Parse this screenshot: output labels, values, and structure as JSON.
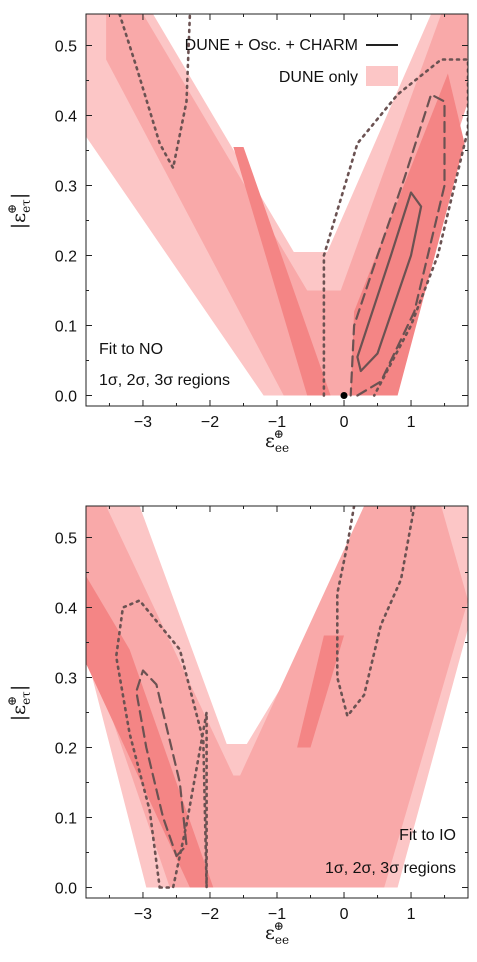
{
  "chart_data": [
    {
      "type": "contour",
      "xlim": [
        -3.85,
        1.85
      ],
      "ylim": [
        -0.015,
        0.545
      ],
      "x_ticks": [
        -3,
        -2,
        -1,
        0,
        1
      ],
      "y_ticks": [
        0.0,
        0.1,
        0.2,
        0.3,
        0.4,
        0.5
      ],
      "x_tick_labels": [
        "−3",
        "−2",
        "−1",
        "0",
        "1"
      ],
      "y_tick_labels": [
        "0.0",
        "0.1",
        "0.2",
        "0.3",
        "0.4",
        "0.5"
      ],
      "xlabel": {
        "base": "ε",
        "sup": "⊕",
        "sub": "ee"
      },
      "ylabel": {
        "base": "|ε",
        "sup": "⊕",
        "sub": "eτ",
        "close": "|"
      },
      "legend": {
        "placement": "top-right",
        "entries": [
          {
            "label": "DUNE + Osc. + CHARM",
            "style": "line"
          },
          {
            "label": "DUNE only",
            "style": "patch"
          }
        ]
      },
      "annotations": [
        "Fit to NO",
        "1σ, 2σ, 3σ regions"
      ],
      "annotation_placement": "bottom-left",
      "marker": {
        "x": 0.0,
        "y": 0.0
      },
      "regions": [
        {
          "level": "3sigma",
          "color": "#fcc6c6",
          "points": [
            [
              -3.85,
              0.545
            ],
            [
              -2.85,
              0.545
            ],
            [
              -0.75,
              0.205
            ],
            [
              -0.25,
              0.205
            ],
            [
              1.3,
              0.545
            ],
            [
              1.85,
              0.545
            ],
            [
              1.85,
              0.43
            ],
            [
              0.5,
              0.0
            ],
            [
              -1.2,
              0.0
            ],
            [
              -3.85,
              0.37
            ]
          ]
        },
        {
          "level": "2sigma",
          "color": "#f9a9a9",
          "points": [
            [
              -3.55,
              0.545
            ],
            [
              -3.0,
              0.545
            ],
            [
              -0.55,
              0.15
            ],
            [
              -0.05,
              0.15
            ],
            [
              1.45,
              0.545
            ],
            [
              1.85,
              0.545
            ],
            [
              1.85,
              0.42
            ],
            [
              0.45,
              0.0
            ],
            [
              -0.9,
              0.0
            ],
            [
              -3.55,
              0.48
            ]
          ]
        },
        {
          "level": "1sigma",
          "color": "#f48585",
          "points": [
            [
              -1.65,
              0.355
            ],
            [
              -1.5,
              0.355
            ],
            [
              -0.2,
              0.0
            ],
            [
              -0.55,
              0.0
            ]
          ]
        },
        {
          "level": "1sigma",
          "color": "#f48585",
          "points": [
            [
              0.1,
              0.0
            ],
            [
              0.8,
              0.0
            ],
            [
              1.8,
              0.36
            ],
            [
              1.55,
              0.46
            ],
            [
              0.15,
              0.12
            ]
          ]
        }
      ],
      "contours": [
        {
          "level": "1sigma",
          "style": "solid",
          "points": [
            [
              0.25,
              0.035
            ],
            [
              0.5,
              0.06
            ],
            [
              1.0,
              0.2
            ],
            [
              1.15,
              0.27
            ],
            [
              1.0,
              0.29
            ],
            [
              0.7,
              0.2
            ],
            [
              0.2,
              0.055
            ],
            [
              0.25,
              0.035
            ]
          ]
        },
        {
          "level": "2sigma",
          "style": "dashed",
          "points": [
            [
              0.2,
              0.0
            ],
            [
              0.55,
              0.02
            ],
            [
              1.05,
              0.12
            ],
            [
              1.5,
              0.3
            ],
            [
              1.5,
              0.42
            ],
            [
              1.3,
              0.43
            ],
            [
              0.9,
              0.31
            ],
            [
              0.5,
              0.2
            ],
            [
              0.15,
              0.1
            ],
            [
              0.1,
              0.0
            ]
          ]
        },
        {
          "level": "3sigma",
          "style": "dotted",
          "points": [
            [
              -0.3,
              0.0
            ],
            [
              -0.3,
              0.2
            ],
            [
              0.2,
              0.36
            ],
            [
              0.8,
              0.43
            ],
            [
              1.45,
              0.48
            ],
            [
              1.85,
              0.48
            ],
            [
              1.85,
              0.38
            ],
            [
              1.4,
              0.2
            ],
            [
              1.0,
              0.1
            ],
            [
              0.45,
              0.0
            ]
          ]
        },
        {
          "level": "3sigma",
          "style": "dotted",
          "points": [
            [
              -3.35,
              0.545
            ],
            [
              -3.1,
              0.47
            ],
            [
              -2.75,
              0.36
            ],
            [
              -2.55,
              0.325
            ],
            [
              -2.35,
              0.42
            ],
            [
              -2.3,
              0.545
            ]
          ]
        }
      ]
    },
    {
      "type": "contour",
      "xlim": [
        -3.85,
        1.85
      ],
      "ylim": [
        -0.015,
        0.545
      ],
      "x_ticks": [
        -3,
        -2,
        -1,
        0,
        1
      ],
      "y_ticks": [
        0.0,
        0.1,
        0.2,
        0.3,
        0.4,
        0.5
      ],
      "x_tick_labels": [
        "−3",
        "−2",
        "−1",
        "0",
        "1"
      ],
      "y_tick_labels": [
        "0.0",
        "0.1",
        "0.2",
        "0.3",
        "0.4",
        "0.5"
      ],
      "xlabel": {
        "base": "ε",
        "sup": "⊕",
        "sub": "ee"
      },
      "ylabel": {
        "base": "|ε",
        "sup": "⊕",
        "sub": "eτ",
        "close": "|"
      },
      "annotations": [
        "Fit to IO",
        "1σ, 2σ, 3σ regions"
      ],
      "annotation_placement": "bottom-right",
      "regions": [
        {
          "level": "3sigma",
          "color": "#fcc6c6",
          "points": [
            [
              -3.85,
              0.545
            ],
            [
              -3.05,
              0.545
            ],
            [
              -1.75,
              0.205
            ],
            [
              -1.45,
              0.205
            ],
            [
              0.7,
              0.545
            ],
            [
              1.85,
              0.545
            ],
            [
              1.85,
              0.37
            ],
            [
              0.8,
              0.0
            ],
            [
              -2.95,
              0.0
            ],
            [
              -3.85,
              0.335
            ]
          ]
        },
        {
          "level": "2sigma",
          "color": "#f9a9a9",
          "points": [
            [
              -3.85,
              0.545
            ],
            [
              -3.55,
              0.545
            ],
            [
              -1.65,
              0.16
            ],
            [
              -1.55,
              0.16
            ],
            [
              0.3,
              0.545
            ],
            [
              1.45,
              0.545
            ],
            [
              1.85,
              0.41
            ],
            [
              0.6,
              0.0
            ],
            [
              -2.6,
              0.0
            ],
            [
              -3.85,
              0.35
            ]
          ]
        },
        {
          "level": "1sigma",
          "color": "#f48585",
          "points": [
            [
              -3.85,
              0.445
            ],
            [
              -3.2,
              0.34
            ],
            [
              -1.95,
              0.0
            ],
            [
              -2.3,
              0.0
            ],
            [
              -3.85,
              0.32
            ]
          ]
        },
        {
          "level": "1sigma",
          "color": "#f48585",
          "points": [
            [
              -0.3,
              0.36
            ],
            [
              0.0,
              0.36
            ],
            [
              -0.5,
              0.2
            ],
            [
              -0.7,
              0.2
            ]
          ]
        }
      ],
      "contours": [
        {
          "level": "1sigma",
          "style": "dashed",
          "points": [
            [
              -2.5,
              0.045
            ],
            [
              -2.35,
              0.06
            ],
            [
              -2.45,
              0.15
            ],
            [
              -2.8,
              0.29
            ],
            [
              -3.0,
              0.31
            ],
            [
              -3.1,
              0.28
            ],
            [
              -2.95,
              0.2
            ],
            [
              -2.7,
              0.1
            ],
            [
              -2.5,
              0.045
            ]
          ]
        },
        {
          "level": "2sigma",
          "style": "dotted",
          "points": [
            [
              -2.75,
              0.0
            ],
            [
              -2.55,
              0.0
            ],
            [
              -2.35,
              0.09
            ],
            [
              -2.05,
              0.25
            ],
            [
              -2.05,
              0.0
            ],
            [
              -2.1,
              0.21
            ],
            [
              -2.45,
              0.34
            ],
            [
              -3.05,
              0.41
            ],
            [
              -3.3,
              0.4
            ],
            [
              -3.4,
              0.33
            ],
            [
              -3.2,
              0.22
            ],
            [
              -2.9,
              0.11
            ],
            [
              -2.75,
              0.0
            ]
          ]
        },
        {
          "level": "3sigma",
          "style": "dotted",
          "points": [
            [
              0.15,
              0.545
            ],
            [
              0.05,
              0.49
            ],
            [
              -0.1,
              0.42
            ],
            [
              -0.1,
              0.3
            ],
            [
              0.05,
              0.245
            ],
            [
              0.3,
              0.275
            ],
            [
              0.55,
              0.375
            ],
            [
              0.85,
              0.44
            ],
            [
              1.05,
              0.545
            ]
          ]
        }
      ]
    }
  ]
}
